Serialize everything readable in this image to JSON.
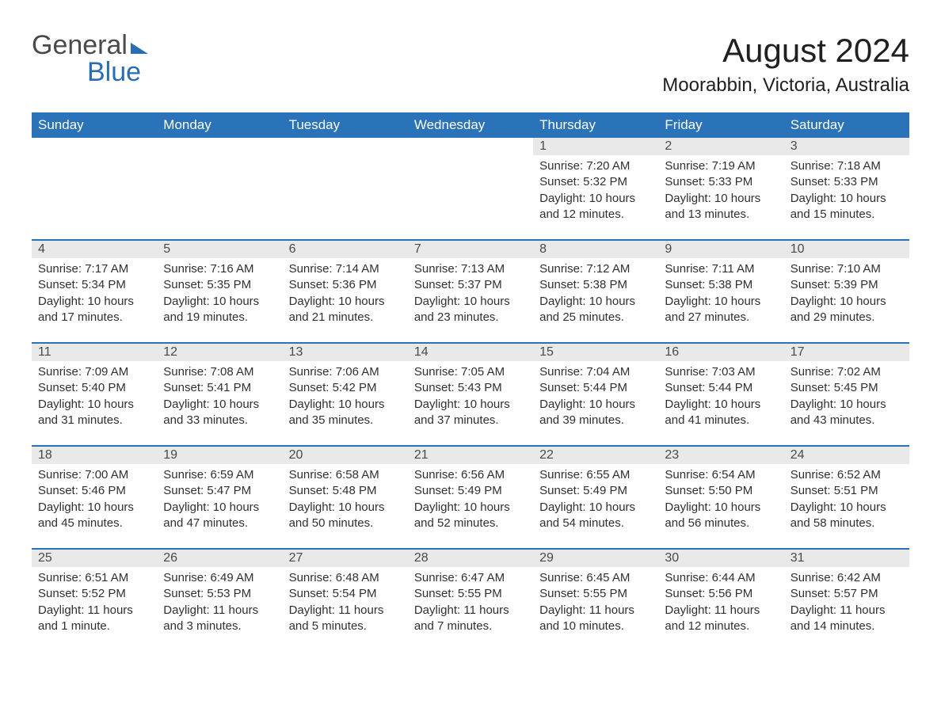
{
  "logo": {
    "word1": "General",
    "word2": "Blue"
  },
  "title": "August 2024",
  "location": "Moorabbin, Victoria, Australia",
  "columns": [
    "Sunday",
    "Monday",
    "Tuesday",
    "Wednesday",
    "Thursday",
    "Friday",
    "Saturday"
  ],
  "colors": {
    "header_bg": "#2a73b8",
    "header_text": "#ffffff",
    "daynum_bg": "#e9e9e9",
    "border": "#2a73b8",
    "text": "#303030",
    "logo_gray": "#4a4a4a",
    "logo_blue": "#2a6db3"
  },
  "weeks": [
    [
      {
        "day": "",
        "sunrise": "",
        "sunset": "",
        "daylight": ""
      },
      {
        "day": "",
        "sunrise": "",
        "sunset": "",
        "daylight": ""
      },
      {
        "day": "",
        "sunrise": "",
        "sunset": "",
        "daylight": ""
      },
      {
        "day": "",
        "sunrise": "",
        "sunset": "",
        "daylight": ""
      },
      {
        "day": "1",
        "sunrise": "Sunrise: 7:20 AM",
        "sunset": "Sunset: 5:32 PM",
        "daylight": "Daylight: 10 hours and 12 minutes."
      },
      {
        "day": "2",
        "sunrise": "Sunrise: 7:19 AM",
        "sunset": "Sunset: 5:33 PM",
        "daylight": "Daylight: 10 hours and 13 minutes."
      },
      {
        "day": "3",
        "sunrise": "Sunrise: 7:18 AM",
        "sunset": "Sunset: 5:33 PM",
        "daylight": "Daylight: 10 hours and 15 minutes."
      }
    ],
    [
      {
        "day": "4",
        "sunrise": "Sunrise: 7:17 AM",
        "sunset": "Sunset: 5:34 PM",
        "daylight": "Daylight: 10 hours and 17 minutes."
      },
      {
        "day": "5",
        "sunrise": "Sunrise: 7:16 AM",
        "sunset": "Sunset: 5:35 PM",
        "daylight": "Daylight: 10 hours and 19 minutes."
      },
      {
        "day": "6",
        "sunrise": "Sunrise: 7:14 AM",
        "sunset": "Sunset: 5:36 PM",
        "daylight": "Daylight: 10 hours and 21 minutes."
      },
      {
        "day": "7",
        "sunrise": "Sunrise: 7:13 AM",
        "sunset": "Sunset: 5:37 PM",
        "daylight": "Daylight: 10 hours and 23 minutes."
      },
      {
        "day": "8",
        "sunrise": "Sunrise: 7:12 AM",
        "sunset": "Sunset: 5:38 PM",
        "daylight": "Daylight: 10 hours and 25 minutes."
      },
      {
        "day": "9",
        "sunrise": "Sunrise: 7:11 AM",
        "sunset": "Sunset: 5:38 PM",
        "daylight": "Daylight: 10 hours and 27 minutes."
      },
      {
        "day": "10",
        "sunrise": "Sunrise: 7:10 AM",
        "sunset": "Sunset: 5:39 PM",
        "daylight": "Daylight: 10 hours and 29 minutes."
      }
    ],
    [
      {
        "day": "11",
        "sunrise": "Sunrise: 7:09 AM",
        "sunset": "Sunset: 5:40 PM",
        "daylight": "Daylight: 10 hours and 31 minutes."
      },
      {
        "day": "12",
        "sunrise": "Sunrise: 7:08 AM",
        "sunset": "Sunset: 5:41 PM",
        "daylight": "Daylight: 10 hours and 33 minutes."
      },
      {
        "day": "13",
        "sunrise": "Sunrise: 7:06 AM",
        "sunset": "Sunset: 5:42 PM",
        "daylight": "Daylight: 10 hours and 35 minutes."
      },
      {
        "day": "14",
        "sunrise": "Sunrise: 7:05 AM",
        "sunset": "Sunset: 5:43 PM",
        "daylight": "Daylight: 10 hours and 37 minutes."
      },
      {
        "day": "15",
        "sunrise": "Sunrise: 7:04 AM",
        "sunset": "Sunset: 5:44 PM",
        "daylight": "Daylight: 10 hours and 39 minutes."
      },
      {
        "day": "16",
        "sunrise": "Sunrise: 7:03 AM",
        "sunset": "Sunset: 5:44 PM",
        "daylight": "Daylight: 10 hours and 41 minutes."
      },
      {
        "day": "17",
        "sunrise": "Sunrise: 7:02 AM",
        "sunset": "Sunset: 5:45 PM",
        "daylight": "Daylight: 10 hours and 43 minutes."
      }
    ],
    [
      {
        "day": "18",
        "sunrise": "Sunrise: 7:00 AM",
        "sunset": "Sunset: 5:46 PM",
        "daylight": "Daylight: 10 hours and 45 minutes."
      },
      {
        "day": "19",
        "sunrise": "Sunrise: 6:59 AM",
        "sunset": "Sunset: 5:47 PM",
        "daylight": "Daylight: 10 hours and 47 minutes."
      },
      {
        "day": "20",
        "sunrise": "Sunrise: 6:58 AM",
        "sunset": "Sunset: 5:48 PM",
        "daylight": "Daylight: 10 hours and 50 minutes."
      },
      {
        "day": "21",
        "sunrise": "Sunrise: 6:56 AM",
        "sunset": "Sunset: 5:49 PM",
        "daylight": "Daylight: 10 hours and 52 minutes."
      },
      {
        "day": "22",
        "sunrise": "Sunrise: 6:55 AM",
        "sunset": "Sunset: 5:49 PM",
        "daylight": "Daylight: 10 hours and 54 minutes."
      },
      {
        "day": "23",
        "sunrise": "Sunrise: 6:54 AM",
        "sunset": "Sunset: 5:50 PM",
        "daylight": "Daylight: 10 hours and 56 minutes."
      },
      {
        "day": "24",
        "sunrise": "Sunrise: 6:52 AM",
        "sunset": "Sunset: 5:51 PM",
        "daylight": "Daylight: 10 hours and 58 minutes."
      }
    ],
    [
      {
        "day": "25",
        "sunrise": "Sunrise: 6:51 AM",
        "sunset": "Sunset: 5:52 PM",
        "daylight": "Daylight: 11 hours and 1 minute."
      },
      {
        "day": "26",
        "sunrise": "Sunrise: 6:49 AM",
        "sunset": "Sunset: 5:53 PM",
        "daylight": "Daylight: 11 hours and 3 minutes."
      },
      {
        "day": "27",
        "sunrise": "Sunrise: 6:48 AM",
        "sunset": "Sunset: 5:54 PM",
        "daylight": "Daylight: 11 hours and 5 minutes."
      },
      {
        "day": "28",
        "sunrise": "Sunrise: 6:47 AM",
        "sunset": "Sunset: 5:55 PM",
        "daylight": "Daylight: 11 hours and 7 minutes."
      },
      {
        "day": "29",
        "sunrise": "Sunrise: 6:45 AM",
        "sunset": "Sunset: 5:55 PM",
        "daylight": "Daylight: 11 hours and 10 minutes."
      },
      {
        "day": "30",
        "sunrise": "Sunrise: 6:44 AM",
        "sunset": "Sunset: 5:56 PM",
        "daylight": "Daylight: 11 hours and 12 minutes."
      },
      {
        "day": "31",
        "sunrise": "Sunrise: 6:42 AM",
        "sunset": "Sunset: 5:57 PM",
        "daylight": "Daylight: 11 hours and 14 minutes."
      }
    ]
  ]
}
